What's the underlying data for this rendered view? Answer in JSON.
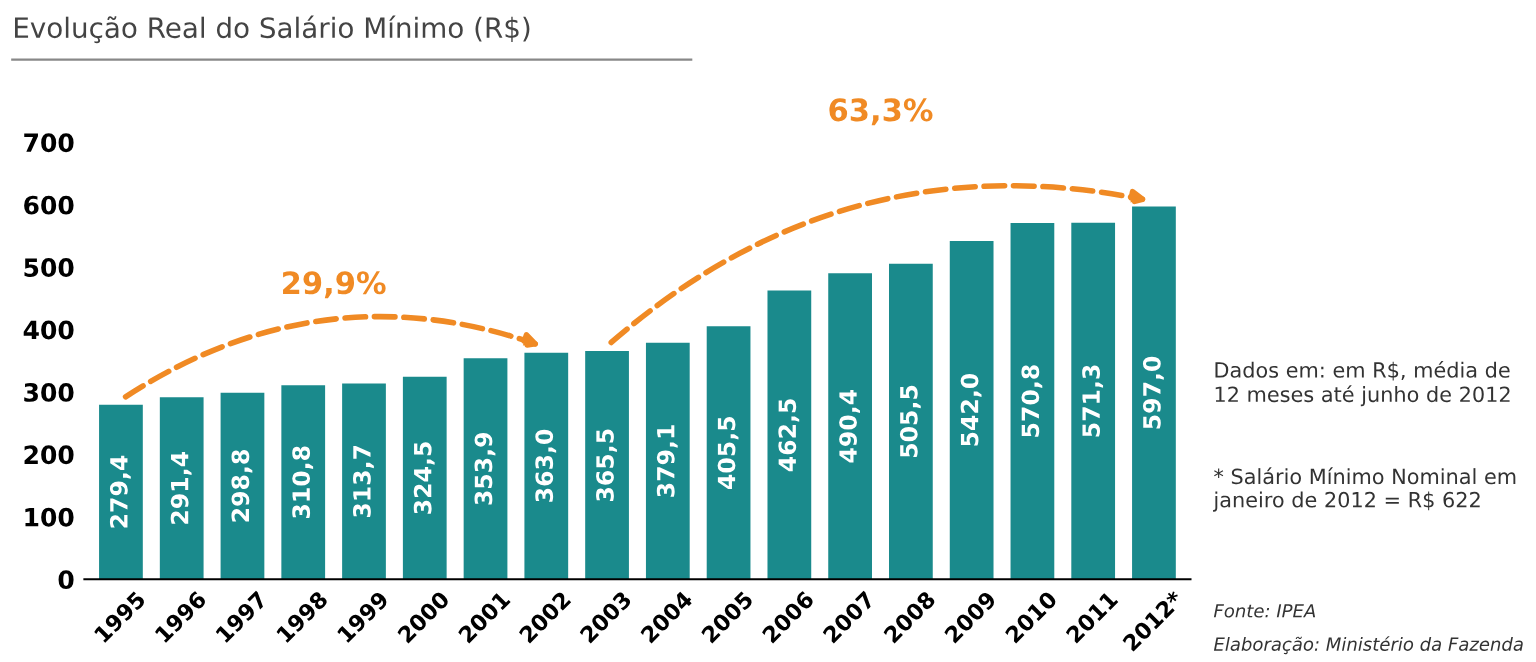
{
  "chart_data": {
    "type": "bar",
    "title": "Evolução Real do Salário Mínimo (R$)",
    "categories": [
      "1995",
      "1996",
      "1997",
      "1998",
      "1999",
      "2000",
      "2001",
      "2002",
      "2003",
      "2004",
      "2005",
      "2006",
      "2007",
      "2008",
      "2009",
      "2010",
      "2011",
      "2012*"
    ],
    "values": [
      279.4,
      291.4,
      298.8,
      310.8,
      313.7,
      324.5,
      353.9,
      363.0,
      365.5,
      379.1,
      405.5,
      462.5,
      490.4,
      505.5,
      542.0,
      570.8,
      571.3,
      597.0
    ],
    "value_labels": [
      "279,4",
      "291,4",
      "298,8",
      "310,8",
      "313,7",
      "324,5",
      "353,9",
      "363,0",
      "365,5",
      "379,1",
      "405,5",
      "462,5",
      "490,4",
      "505,5",
      "542,0",
      "570,8",
      "571,3",
      "597,0"
    ],
    "color": "#1a8a8c",
    "ylim": [
      0,
      700
    ],
    "yticks": [
      0,
      100,
      200,
      300,
      400,
      500,
      600,
      700
    ],
    "grid": false,
    "annotations": [
      "29,9%",
      "63,3%",
      "Dados em: em R$, média de 12 meses até junho de 2012",
      "* Salário Mínimo Nominal em janeiro de 2012 = R$ 622",
      "Fonte: IPEA",
      "Elaboração: Ministério da Fazenda"
    ]
  }
}
